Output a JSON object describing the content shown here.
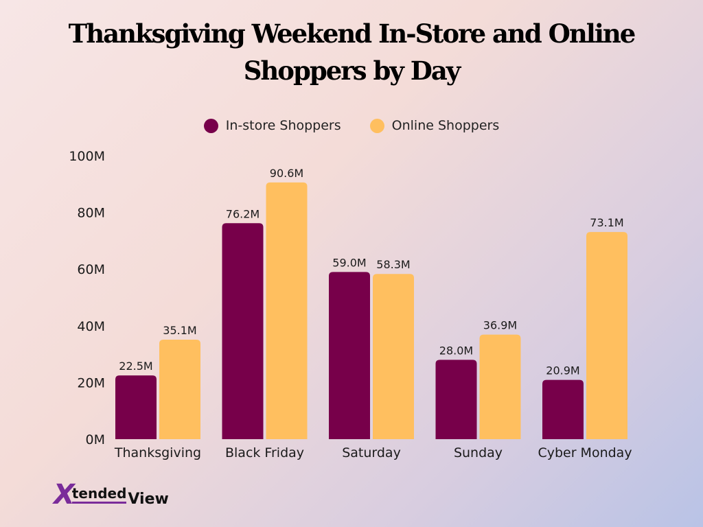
{
  "colors": {
    "instore": "#77004a",
    "online": "#ffbf5f"
  },
  "logo": {
    "x": "X",
    "tended": "tended",
    "view": "View"
  },
  "chart_data": {
    "type": "bar",
    "title": "Thanksgiving Weekend In-Store and Online Shoppers by Day",
    "xlabel": "",
    "ylabel": "",
    "categories": [
      "Thanksgiving",
      "Black Friday",
      "Saturday",
      "Sunday",
      "Cyber Monday"
    ],
    "series": [
      {
        "name": "In-store Shoppers",
        "values": [
          22.5,
          76.2,
          59.0,
          28.0,
          20.9
        ],
        "color": "#77004a"
      },
      {
        "name": "Online Shoppers",
        "values": [
          35.1,
          90.6,
          58.3,
          36.9,
          73.1
        ],
        "color": "#ffbf5f"
      }
    ],
    "value_suffix": "M",
    "ylim": [
      0,
      100
    ],
    "yticks": [
      0,
      20,
      40,
      60,
      80,
      100
    ],
    "ytick_labels": [
      "0M",
      "20M",
      "40M",
      "60M",
      "80M",
      "100M"
    ],
    "data_labels": [
      [
        "22.5M",
        "76.2M",
        "59.0M",
        "28.0M",
        "20.9M"
      ],
      [
        "35.1M",
        "90.6M",
        "58.3M",
        "36.9M",
        "73.1M"
      ]
    ],
    "grid": false,
    "legend_position": "top-center"
  }
}
